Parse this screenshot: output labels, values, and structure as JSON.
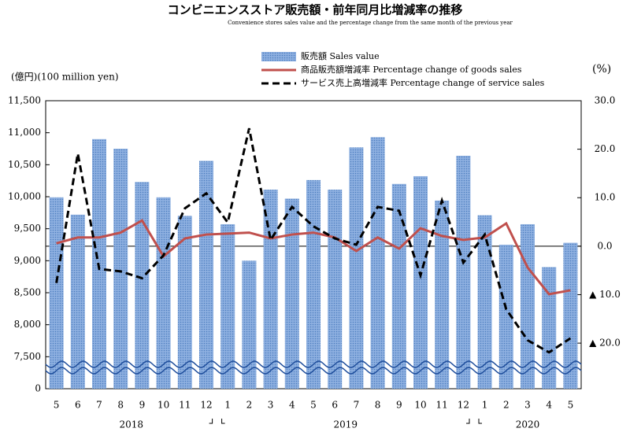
{
  "chart_data": {
    "type": "bar_line",
    "title": "コンビニエンスストア販売額・前年同月比増減率の推移",
    "subtitle": "Convenience stores sales value and the percentage change from the same month of the previous year",
    "ylabel": "(億円)(100 million yen)",
    "y2label": "(%)",
    "categories": [
      "5",
      "6",
      "7",
      "8",
      "9",
      "10",
      "11",
      "12",
      "1",
      "2",
      "3",
      "4",
      "5",
      "6",
      "7",
      "8",
      "9",
      "10",
      "11",
      "12",
      "1",
      "2",
      "3",
      "4",
      "5"
    ],
    "year_labels": [
      "2018",
      "2019",
      "2020"
    ],
    "ylim": [
      0,
      11500
    ],
    "yticks": [
      0,
      {
        "value": 7500,
        "label": "7,500"
      },
      {
        "value": 8000,
        "label": "8,000"
      },
      {
        "value": 8500,
        "label": "8,500"
      },
      {
        "value": 9000,
        "label": "9,000"
      },
      {
        "value": 9500,
        "label": "9,500"
      },
      {
        "value": 10000,
        "label": "10,000"
      },
      {
        "value": 10500,
        "label": "10,500"
      },
      {
        "value": 11000,
        "label": "11,000"
      },
      {
        "value": 11500,
        "label": "11,500"
      }
    ],
    "y2lim": [
      -29.4,
      30
    ],
    "y2ticks": [
      {
        "value": 30,
        "label": "30.0"
      },
      {
        "value": 20,
        "label": "20.0"
      },
      {
        "value": 10,
        "label": "10.0"
      },
      {
        "value": 0,
        "label": "0.0"
      },
      {
        "value": -10,
        "label": "▲ 10.0"
      },
      {
        "value": -20,
        "label": "▲ 20.0"
      }
    ],
    "legend": "top",
    "series": [
      {
        "name": "販売額 Sales value",
        "kind": "bar",
        "color": "#8eb0e0",
        "values": [
          9990,
          9720,
          10900,
          10750,
          10230,
          9990,
          9700,
          10560,
          9570,
          9000,
          10110,
          9970,
          10260,
          10110,
          10770,
          10930,
          10200,
          10320,
          9940,
          10640,
          9710,
          9250,
          9570,
          8900,
          9280
        ]
      },
      {
        "name": "商品販売額増減率 Percentage change of goods sales",
        "kind": "line",
        "axis": "y2",
        "color": "#c0504d",
        "values": [
          0.6,
          1.8,
          1.8,
          2.8,
          5.3,
          -2.1,
          1.6,
          2.4,
          2.6,
          2.8,
          1.6,
          2.4,
          2.8,
          1.8,
          -1.0,
          1.8,
          -0.5,
          3.7,
          2.1,
          1.3,
          1.8,
          4.7,
          -4.4,
          -9.9,
          -9.1
        ]
      },
      {
        "name": "サービス売上高増減率 Percentage change of service sales",
        "kind": "dashed",
        "axis": "y2",
        "color": "#000000",
        "values": [
          -7.6,
          19.1,
          -4.7,
          -5.2,
          -6.6,
          -1.9,
          7.8,
          10.9,
          4.9,
          24.3,
          1.3,
          8.1,
          4.1,
          1.6,
          0.3,
          8.1,
          7.3,
          -6.0,
          9.4,
          -3.4,
          2.4,
          -13.0,
          -19.4,
          -21.9,
          -19.0
        ]
      }
    ]
  }
}
